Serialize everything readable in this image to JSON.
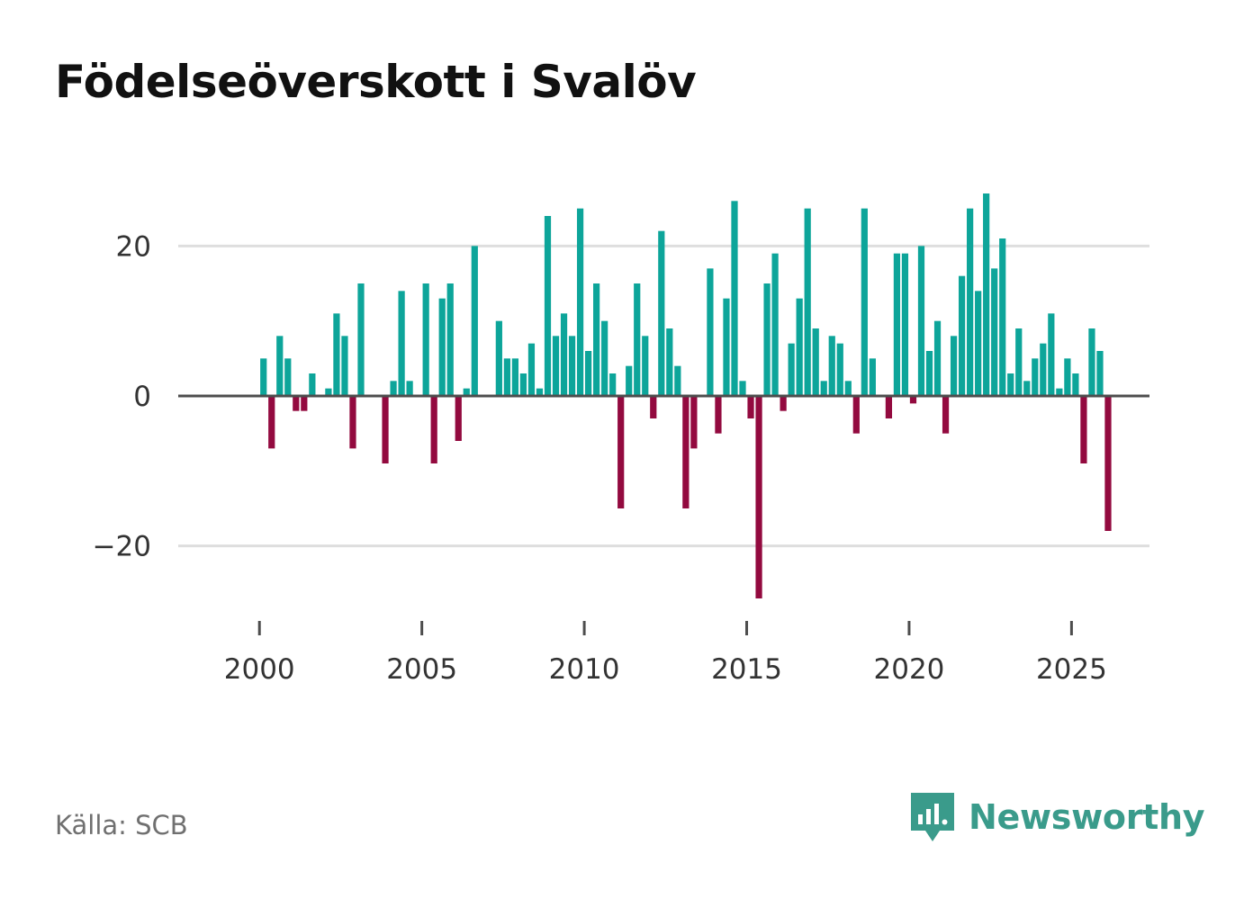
{
  "chart_data": {
    "type": "bar",
    "title": "Födelseöverskott i Svalöv",
    "xlabel": "",
    "ylabel": "",
    "xlim": [
      1997.5,
      2027.4
    ],
    "ylim": [
      -30,
      30
    ],
    "yticks": [
      20,
      0,
      -20
    ],
    "ytick_labels": [
      "20",
      "0",
      "−20"
    ],
    "xticks": [
      2000,
      2005,
      2010,
      2015,
      2020,
      2025
    ],
    "xtick_labels": [
      "2000",
      "2005",
      "2010",
      "2015",
      "2020",
      "2025"
    ],
    "grid": true,
    "start_year": 2000,
    "periods_per_year": 4,
    "values": [
      5,
      -7,
      8,
      5,
      -2,
      -2,
      3,
      0,
      1,
      11,
      8,
      -7,
      15,
      0,
      0,
      -9,
      2,
      14,
      2,
      0,
      15,
      -9,
      13,
      15,
      -6,
      1,
      20,
      0,
      0,
      10,
      5,
      5,
      3,
      7,
      1,
      24,
      8,
      11,
      8,
      25,
      6,
      15,
      10,
      3,
      -15,
      4,
      15,
      8,
      -3,
      22,
      9,
      4,
      -15,
      -7,
      0,
      17,
      -5,
      13,
      26,
      2,
      -3,
      -27,
      15,
      19,
      -2,
      7,
      13,
      25,
      9,
      2,
      8,
      7,
      2,
      -5,
      25,
      5,
      0,
      -3,
      19,
      19,
      -1,
      20,
      6,
      10,
      -5,
      8,
      16,
      25,
      14,
      27,
      17,
      21,
      3,
      9,
      2,
      5,
      7,
      11,
      1,
      5,
      3,
      -9,
      9,
      6,
      -18
    ],
    "colors": {
      "positive": "#0da59a",
      "negative": "#930a3f"
    }
  },
  "source": "Källa: SCB",
  "brand": "Newsworthy"
}
